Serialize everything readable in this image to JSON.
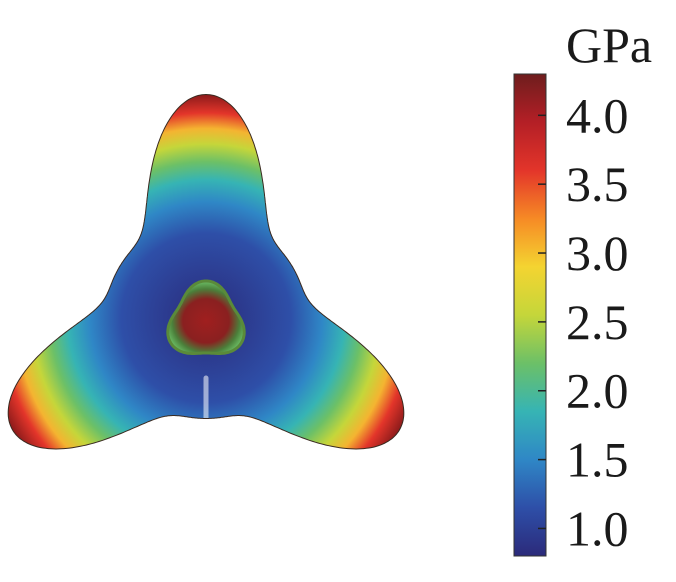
{
  "colorbar": {
    "unit": "GPa",
    "ticks": [
      {
        "label": "4.0",
        "value": 4.0
      },
      {
        "label": "3.5",
        "value": 3.5
      },
      {
        "label": "3.0",
        "value": 3.0
      },
      {
        "label": "2.5",
        "value": 2.5
      },
      {
        "label": "2.0",
        "value": 2.0
      },
      {
        "label": "1.5",
        "value": 1.5
      },
      {
        "label": "1.0",
        "value": 1.0
      }
    ],
    "range": [
      0.8,
      4.3
    ],
    "colormap": [
      "#2b2a7a",
      "#2e4fa8",
      "#2f87c6",
      "#36b4b4",
      "#6cc067",
      "#c5d63a",
      "#f4d431",
      "#f68a25",
      "#e3352a",
      "#b41f26",
      "#6e1d1d"
    ]
  },
  "surface": {
    "shape": "six-lobed star",
    "min_color": "#2b2a7a",
    "max_color": "#8e1b1b"
  }
}
